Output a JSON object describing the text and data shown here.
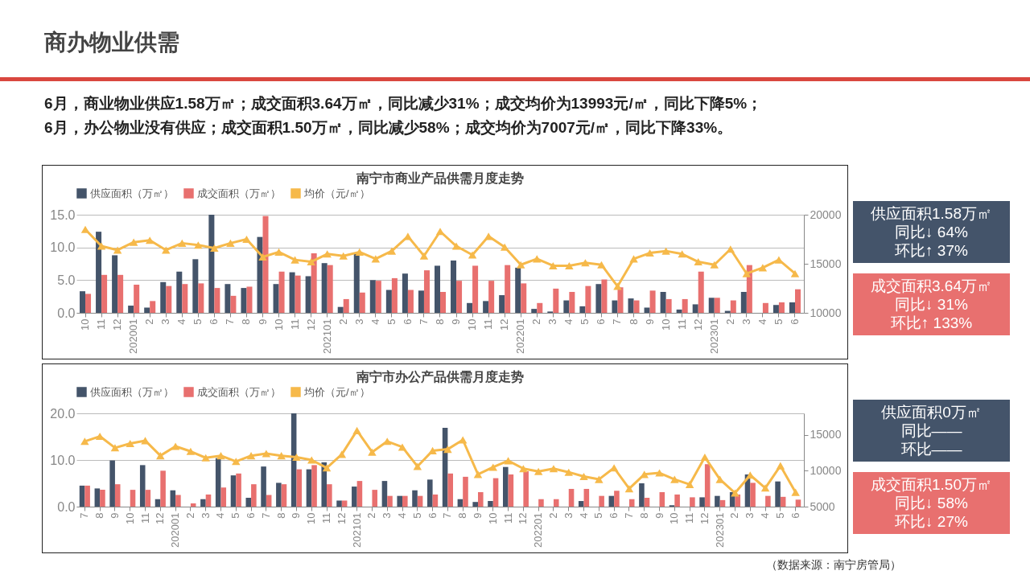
{
  "chart_data": [
    {
      "type": "other",
      "title": "商办物业供需",
      "annotations": [
        "6月，商业物业供应1.58万㎡；成交面积3.64万㎡，同比减少31%；成交均价为13993元/㎡，同比下降5%；",
        "6月，办公物业没有供应；成交面积1.50万㎡，同比减少58%；成交均价为7007元/㎡，同比下降33%。"
      ]
    },
    {
      "type": "bar",
      "title": "南宁市商业产品供需月度走势",
      "legend": "top",
      "grid": "y",
      "marker": "triangle",
      "categories": [
        "10",
        "11",
        "12",
        "202001",
        "2",
        "3",
        "4",
        "5",
        "6",
        "7",
        "8",
        "9",
        "10",
        "11",
        "12",
        "202101",
        "2",
        "3",
        "4",
        "5",
        "6",
        "7",
        "8",
        "9",
        "10",
        "11",
        "12",
        "202201",
        "2",
        "3",
        "4",
        "5",
        "6",
        "7",
        "8",
        "9",
        "10",
        "11",
        "12",
        "202301",
        "2",
        "3",
        "4",
        "5",
        "6"
      ],
      "ylim": [
        0,
        15
      ],
      "yticks": [
        {
          "value": 0,
          "label": "0.0"
        },
        {
          "value": 5,
          "label": "5.0"
        },
        {
          "value": 10,
          "label": "10.0"
        },
        {
          "value": 15,
          "label": "15.0"
        }
      ],
      "y2lim": [
        10000,
        20000
      ],
      "y2ticks": [
        10000,
        15000,
        20000
      ],
      "series": [
        {
          "name": "供应面积（万㎡）",
          "color": "#44546a",
          "values": [
            3.3,
            12.4,
            8.8,
            1.1,
            0.8,
            4.7,
            6.3,
            8.2,
            15.0,
            4.4,
            3.8,
            11.6,
            4.4,
            6.2,
            5.6,
            7.6,
            0.9,
            9.0,
            5.0,
            3.5,
            6.0,
            3.4,
            7.2,
            8.0,
            1.5,
            1.8,
            2.7,
            6.9,
            0.6,
            0.2,
            1.9,
            1.0,
            4.4,
            1.9,
            2.2,
            0.8,
            3.2,
            0.5,
            1.3,
            2.3,
            0.3,
            3.2,
            0,
            1.2,
            1.6
          ]
        },
        {
          "name": "成交面积（万㎡）",
          "color": "#e8706f",
          "values": [
            2.9,
            5.8,
            5.8,
            4.3,
            1.8,
            4.1,
            4.4,
            4.5,
            3.8,
            2.6,
            4.0,
            14.8,
            6.3,
            5.7,
            9.1,
            7.3,
            2.1,
            3.1,
            4.9,
            5.3,
            3.5,
            6.5,
            3.2,
            4.9,
            7.2,
            4.9,
            7.3,
            4.5,
            1.5,
            3.7,
            3.2,
            4.1,
            5.1,
            3.9,
            1.9,
            3.4,
            2.1,
            2.1,
            6.3,
            2.3,
            1.9,
            7.3,
            1.5,
            1.6,
            3.6
          ]
        },
        {
          "name": "均价（元/㎡）",
          "type": "line",
          "axis": "y2",
          "color": "#f6b94a",
          "values": [
            18500,
            16800,
            16400,
            17200,
            17400,
            16400,
            17100,
            16900,
            16600,
            17100,
            17500,
            15700,
            16200,
            15400,
            15200,
            16000,
            15800,
            16200,
            15500,
            16300,
            17800,
            15800,
            18300,
            16800,
            15900,
            17800,
            16700,
            14900,
            15500,
            14800,
            14800,
            15100,
            14900,
            12700,
            15500,
            16100,
            16300,
            16000,
            15200,
            14900,
            16500,
            14000,
            14600,
            15400,
            14000
          ]
        }
      ],
      "annotations": [
        "供应面积1.58万㎡",
        "同比↓ 64%",
        "环比↑ 37%",
        "成交面积3.64万㎡",
        "同比↓ 31%",
        "环比↑ 133%"
      ]
    },
    {
      "type": "bar",
      "title": "南宁市办公产品供需月度走势",
      "legend": "top",
      "grid": "y",
      "marker": "triangle",
      "categories": [
        "7",
        "8",
        "9",
        "10",
        "11",
        "12",
        "202001",
        "2",
        "3",
        "4",
        "5",
        "6",
        "7",
        "8",
        "9",
        "10",
        "11",
        "12",
        "202101",
        "2",
        "3",
        "4",
        "5",
        "6",
        "7",
        "8",
        "9",
        "10",
        "11",
        "12",
        "202201",
        "2",
        "3",
        "4",
        "5",
        "6",
        "7",
        "8",
        "9",
        "10",
        "11",
        "12",
        "202301",
        "2",
        "3",
        "4",
        "5",
        "6"
      ],
      "ylim": [
        0,
        20
      ],
      "yticks": [
        {
          "value": 0,
          "label": "0.0"
        },
        {
          "value": 10,
          "label": "10.0"
        },
        {
          "value": 20,
          "label": "20.0"
        }
      ],
      "y2lim": [
        5000,
        18000
      ],
      "y2ticks": [
        5000,
        10000,
        15000
      ],
      "series": [
        {
          "name": "供应面积（万㎡）",
          "color": "#44546a",
          "values": [
            4.5,
            3.9,
            9.9,
            0,
            8.9,
            1.6,
            3.5,
            0,
            1.6,
            10.4,
            6.7,
            1.9,
            8.6,
            5.1,
            20.0,
            8.0,
            9.5,
            1.3,
            4.3,
            0,
            5.5,
            2.3,
            3.5,
            5.8,
            16.9,
            1.6,
            1.0,
            1.2,
            8.5,
            0,
            0,
            0,
            0,
            1.2,
            0,
            2.3,
            0,
            5.0,
            0,
            0.3,
            0,
            2.0,
            2.3,
            3.1,
            6.9,
            0,
            5.4,
            0
          ]
        },
        {
          "name": "成交面积（万㎡）",
          "color": "#e8706f",
          "values": [
            4.5,
            3.6,
            4.8,
            3.6,
            3.6,
            7.7,
            2.5,
            0.7,
            2.6,
            4.1,
            7.1,
            4.8,
            2.5,
            4.8,
            8.0,
            8.9,
            4.8,
            1.3,
            5.5,
            3.6,
            2.3,
            2.3,
            2.3,
            2.6,
            7.1,
            6.4,
            3.1,
            6.1,
            6.9,
            7.6,
            1.6,
            1.6,
            3.8,
            3.8,
            2.3,
            3.4,
            1.6,
            1.9,
            3.1,
            2.6,
            2.0,
            9.1,
            1.4,
            2.6,
            5.1,
            2.3,
            2.1,
            1.5
          ]
        },
        {
          "name": "均价（元/㎡）",
          "type": "line",
          "axis": "y2",
          "color": "#f6b94a",
          "values": [
            14100,
            14800,
            13200,
            13800,
            14200,
            12100,
            13400,
            12700,
            11800,
            12100,
            11300,
            12100,
            12400,
            12100,
            11900,
            11500,
            10400,
            12300,
            15600,
            12600,
            14100,
            13300,
            10600,
            12800,
            13000,
            14300,
            9500,
            10500,
            11400,
            10300,
            9900,
            10300,
            9800,
            9200,
            8800,
            10400,
            7500,
            9500,
            9700,
            8800,
            8100,
            11900,
            8800,
            6900,
            9400,
            7600,
            10700,
            7000
          ]
        }
      ],
      "annotations": [
        "供应面积0万㎡",
        "同比——",
        "环比——",
        "成交面积1.50万㎡",
        "同比↓ 58%",
        "环比↓ 27%",
        "（数据来源：南宁房管局）"
      ]
    }
  ]
}
